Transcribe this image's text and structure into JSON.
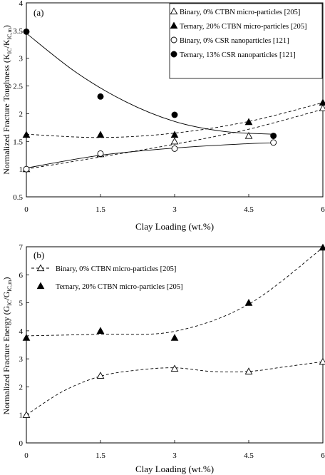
{
  "chart_data": [
    {
      "type": "scatter",
      "panel_label": "(a)",
      "xlabel": "Clay Loading (wt.%)",
      "ylabel": "Normalized Fracture Toughness (K_IC/K_IC,m)",
      "xlim": [
        0,
        6
      ],
      "ylim": [
        0.5,
        4
      ],
      "x_ticks": [
        0,
        1.5,
        3,
        4.5,
        6
      ],
      "x_tick_labels": [
        "0",
        "1.5",
        "3",
        "4.5",
        "6"
      ],
      "y_ticks": [
        0.5,
        1,
        1.5,
        2,
        2.5,
        3,
        3.5,
        4
      ],
      "y_tick_labels": [
        "0.5",
        "1",
        "1.5",
        "2",
        "2.5",
        "3",
        "3.5",
        "4"
      ],
      "grid": false,
      "legend_position": "top-right",
      "series": [
        {
          "name": "Binary, 0% CTBN micro-particles [205]",
          "marker": "triangle-open",
          "line": "dashed",
          "x": [
            0,
            1.5,
            3,
            4.5,
            6
          ],
          "y": [
            1.0,
            1.27,
            1.5,
            1.6,
            2.1
          ],
          "trend": [
            [
              0,
              1.0
            ],
            [
              1.5,
              1.22
            ],
            [
              3,
              1.45
            ],
            [
              4.5,
              1.72
            ],
            [
              6,
              2.08
            ]
          ]
        },
        {
          "name": "Ternary, 20% CTBN micro-particles [205]",
          "marker": "triangle-filled",
          "line": "dashed",
          "x": [
            0,
            1.5,
            3,
            4.5,
            6
          ],
          "y": [
            1.62,
            1.62,
            1.62,
            1.85,
            2.2
          ],
          "trend": [
            [
              0,
              1.63
            ],
            [
              1.5,
              1.57
            ],
            [
              3,
              1.65
            ],
            [
              4.5,
              1.86
            ],
            [
              6,
              2.2
            ]
          ]
        },
        {
          "name": "Binary, 0% CSR nanoparticles [121]",
          "marker": "circle-open",
          "line": "solid",
          "x": [
            0,
            1.5,
            3,
            5
          ],
          "y": [
            1.0,
            1.28,
            1.37,
            1.48
          ],
          "trend": [
            [
              0,
              1.02
            ],
            [
              1.5,
              1.25
            ],
            [
              3,
              1.38
            ],
            [
              4.5,
              1.46
            ],
            [
              5,
              1.47
            ]
          ]
        },
        {
          "name": "Ternary, 13% CSR nanoparticles [121]",
          "marker": "circle-filled",
          "line": "solid",
          "x": [
            0,
            1.5,
            3,
            5
          ],
          "y": [
            3.48,
            2.31,
            1.98,
            1.6
          ],
          "trend": [
            [
              0,
              3.45
            ],
            [
              1,
              2.75
            ],
            [
              2,
              2.22
            ],
            [
              3,
              1.86
            ],
            [
              4,
              1.68
            ],
            [
              5,
              1.63
            ]
          ]
        }
      ]
    },
    {
      "type": "scatter",
      "panel_label": "(b)",
      "xlabel": "Clay Loading (wt.%)",
      "ylabel": "Normalized Fracture Energy (G_IC/G_IC,m)",
      "xlim": [
        0,
        6
      ],
      "ylim": [
        0,
        7
      ],
      "x_ticks": [
        0,
        1.5,
        3,
        4.5,
        6
      ],
      "x_tick_labels": [
        "0",
        "1.5",
        "3",
        "4.5",
        "6"
      ],
      "y_ticks": [
        0,
        1,
        2,
        3,
        4,
        5,
        6,
        7
      ],
      "y_tick_labels": [
        "0",
        "1",
        "2",
        "3",
        "4",
        "5",
        "6",
        "7"
      ],
      "grid": false,
      "legend_position": "top-left",
      "series": [
        {
          "name": "Binary, 0% CTBN micro-particles [205]",
          "marker": "triangle-open",
          "line": "dashed",
          "x": [
            0,
            1.5,
            3,
            4.5,
            6
          ],
          "y": [
            1.0,
            2.4,
            2.65,
            2.55,
            2.9
          ],
          "trend": [
            [
              0,
              1.0
            ],
            [
              0.75,
              1.85
            ],
            [
              1.5,
              2.38
            ],
            [
              2.25,
              2.6
            ],
            [
              3,
              2.68
            ],
            [
              3.75,
              2.55
            ],
            [
              4.5,
              2.55
            ],
            [
              5.25,
              2.72
            ],
            [
              6,
              2.9
            ]
          ]
        },
        {
          "name": "Ternary, 20% CTBN micro-particles [205]",
          "marker": "triangle-filled",
          "line": "none",
          "x": [
            0,
            1.5,
            3,
            4.5,
            6
          ],
          "y": [
            3.75,
            4.0,
            3.75,
            5.0,
            6.97
          ],
          "trend": [
            [
              0,
              3.82
            ],
            [
              1.5,
              3.88
            ],
            [
              3,
              3.98
            ],
            [
              4.5,
              4.95
            ],
            [
              6,
              6.97
            ]
          ]
        }
      ]
    }
  ]
}
